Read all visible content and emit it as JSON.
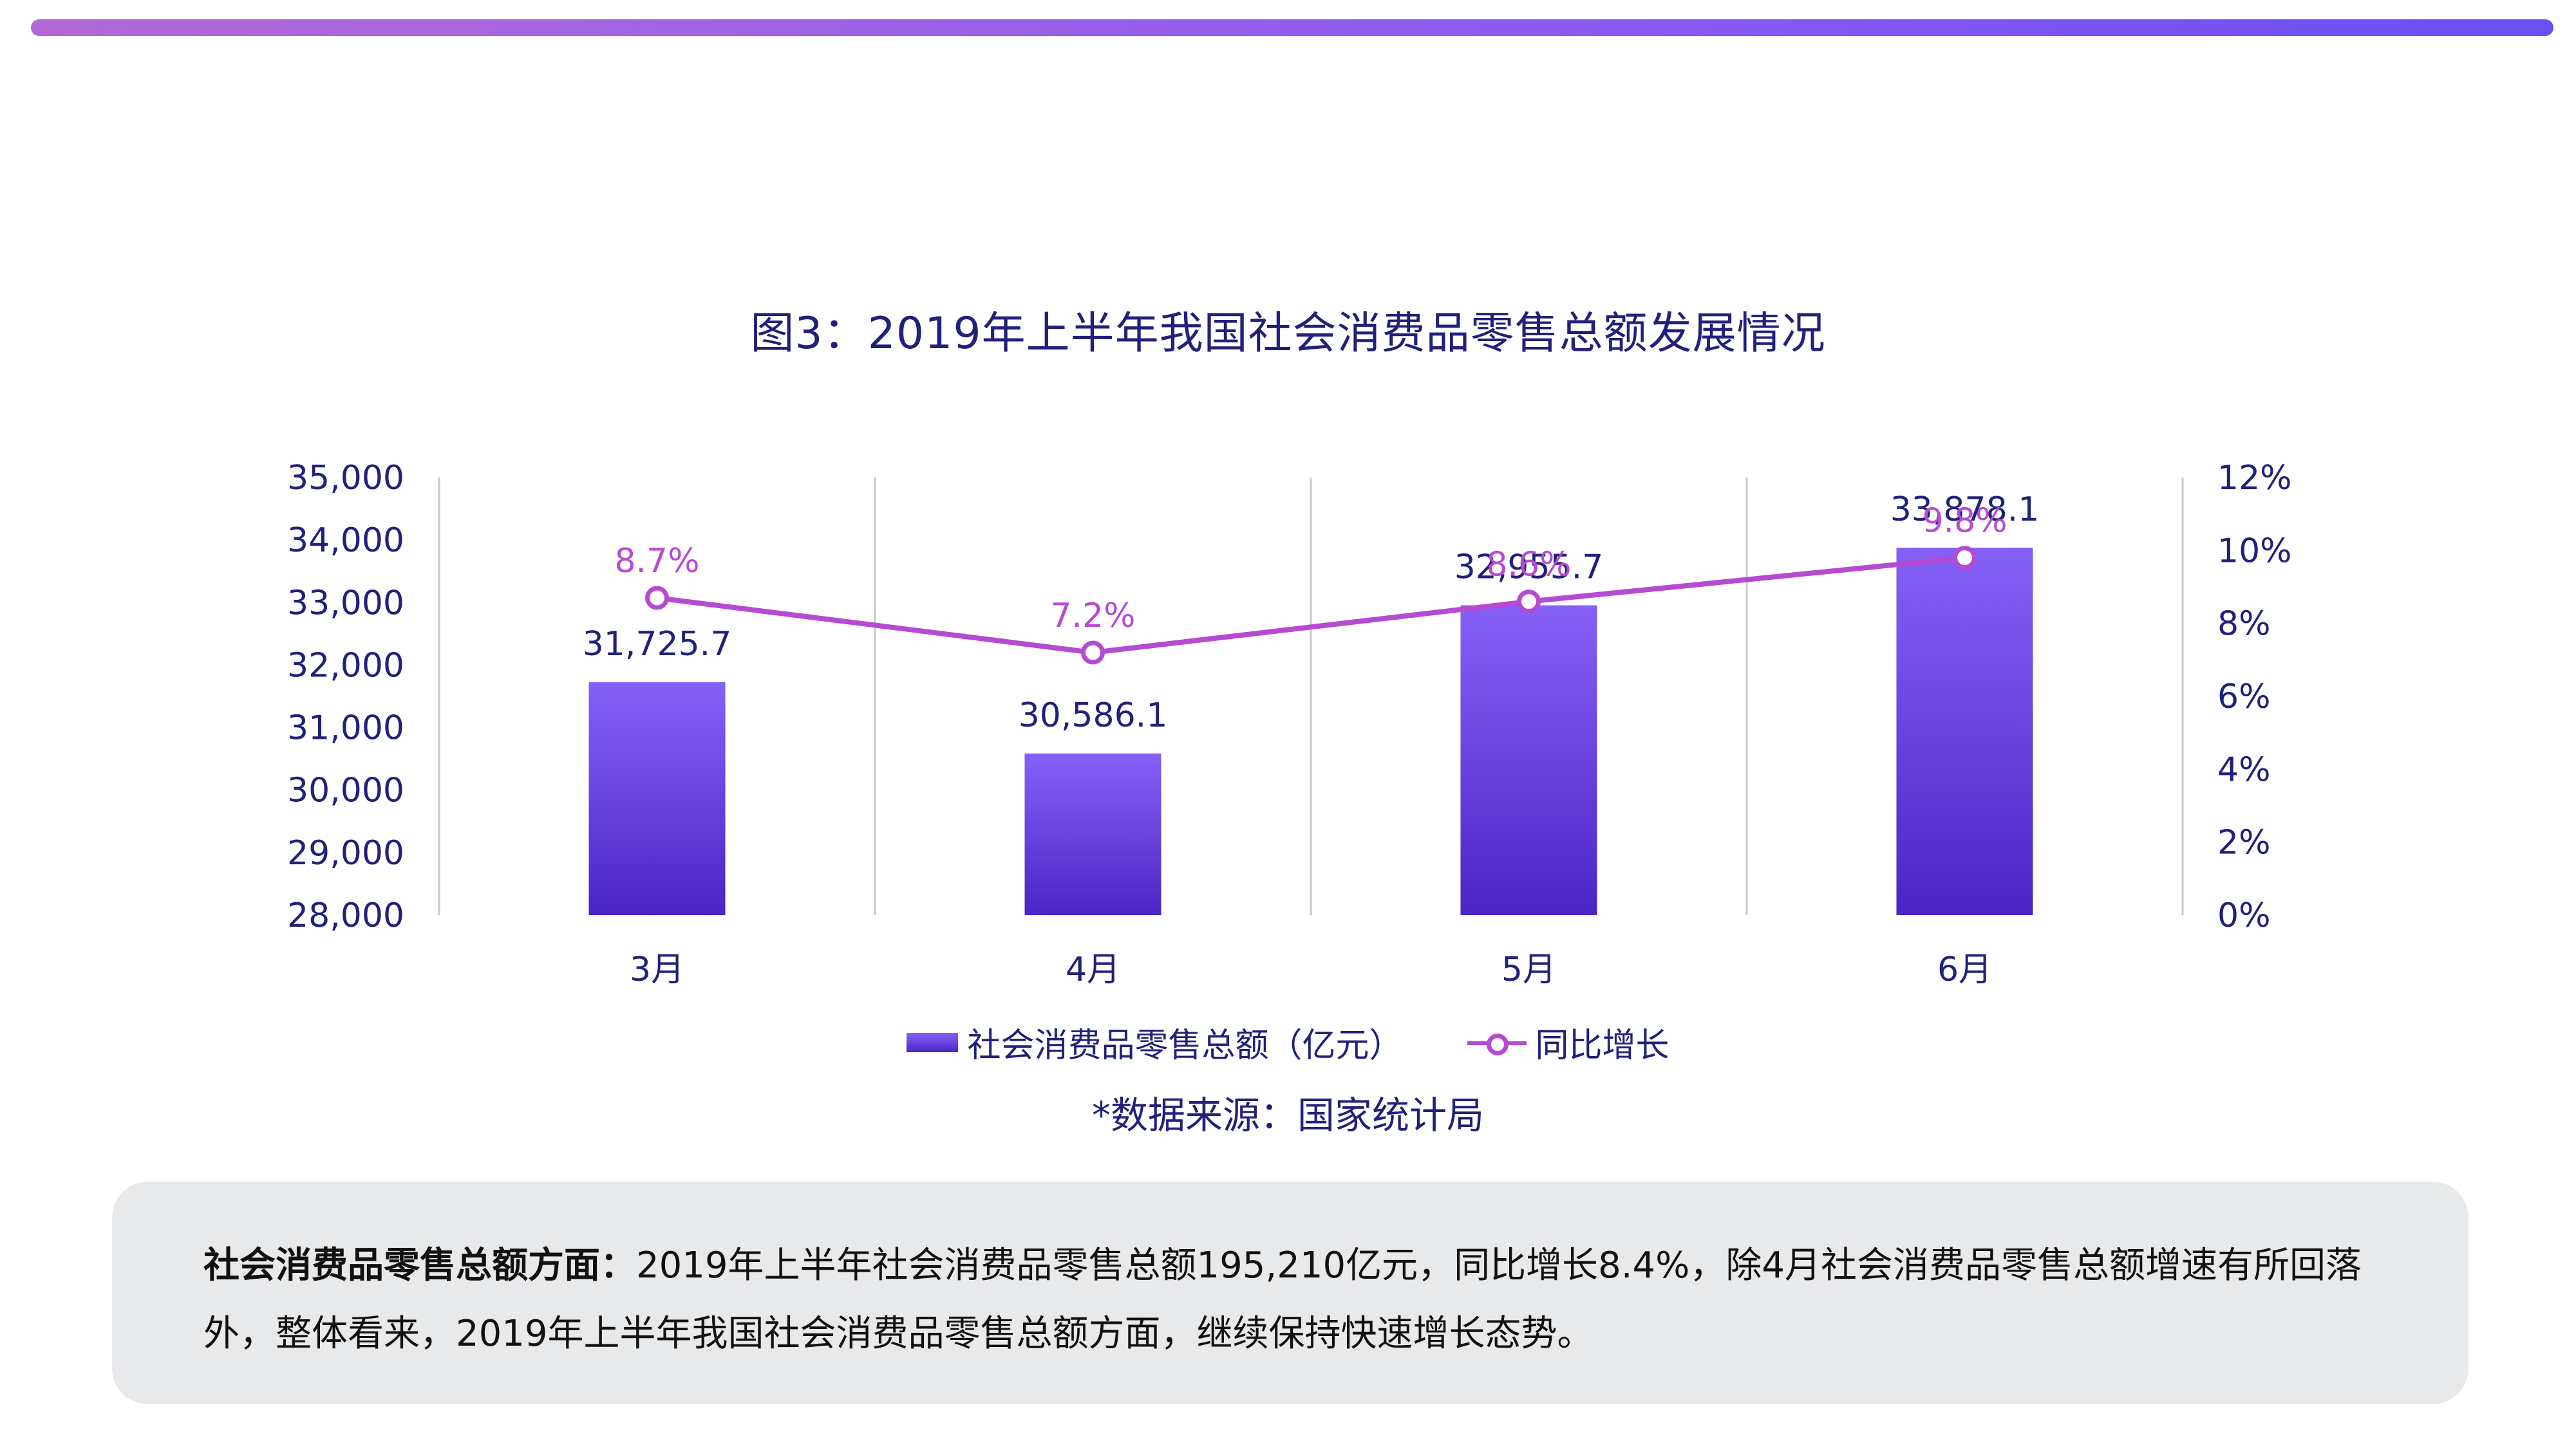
{
  "chart_data": {
    "type": "bar",
    "title": "图3：2019年上半年我国社会消费品零售总额发展情况",
    "categories": [
      "3月",
      "4月",
      "5月",
      "6月"
    ],
    "series": [
      {
        "name": "社会消费品零售总额（亿元）",
        "type": "bar",
        "axis": "left",
        "values": [
          31725.7,
          30586.1,
          32955.7,
          33878.1
        ],
        "labels": [
          "31,725.7",
          "30,586.1",
          "32,955.7",
          "33,878.1"
        ]
      },
      {
        "name": "同比增长",
        "type": "line",
        "axis": "right",
        "values": [
          8.7,
          7.2,
          8.6,
          9.8
        ],
        "labels": [
          "8.7%",
          "7.2%",
          "8.6%",
          "9.8%"
        ]
      }
    ],
    "y_left": {
      "range": [
        28000,
        35000
      ],
      "ticks": [
        "28,000",
        "29,000",
        "30,000",
        "31,000",
        "32,000",
        "33,000",
        "34,000",
        "35,000"
      ]
    },
    "y_right": {
      "range": [
        0,
        12
      ],
      "ticks": [
        "0%",
        "2%",
        "4%",
        "6%",
        "8%",
        "10%",
        "12%"
      ]
    },
    "grid": "vertical category separators",
    "legend": "bottom",
    "colors": {
      "bar_top": "#8661f6",
      "bar_bottom": "#4a25c7",
      "line": "#b64ad3",
      "text": "#21207a",
      "top_bar": "#8f5cf0"
    }
  },
  "source": "*数据来源：国家统计局",
  "summary": {
    "heading": "社会消费品零售总额方面：",
    "body": "2019年上半年社会消费品零售总额195,210亿元，同比增长8.4%，除4月社会消费品零售总额增速有所回落外，整体看来，2019年上半年我国社会消费品零售总额方面，继续保持快速增长态势。"
  }
}
